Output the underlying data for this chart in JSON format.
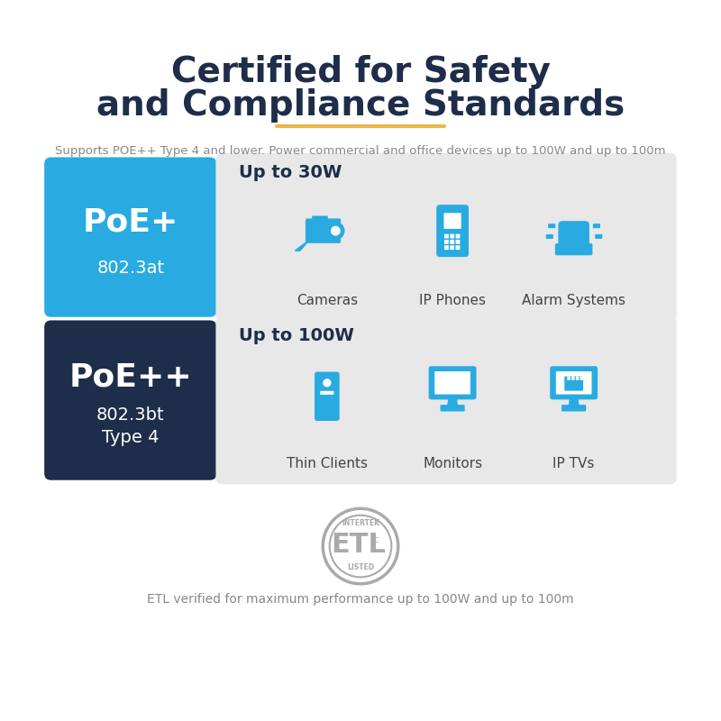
{
  "title_line1": "Certified for Safety",
  "title_line2": "and Compliance Standards",
  "title_color": "#1e2d4a",
  "subtitle": "Supports POE++ Type 4 and lower. Power commercial and office devices up to 100W and up to 100m",
  "subtitle_color": "#888888",
  "gold_line_color": "#e8b84b",
  "poe_plus_label": "PoE+",
  "poe_plus_sub": "802.3at",
  "poe_plus_bg": "#29abe2",
  "poe_plus_text_color": "#ffffff",
  "poe_plus_power": "Up to 30W",
  "poe_plus_devices": [
    "Cameras",
    "IP Phones",
    "Alarm Systems"
  ],
  "poe_plus_panel_bg": "#e8e8e8",
  "poe_pp_label": "PoE++",
  "poe_pp_sub1": "802.3bt",
  "poe_pp_sub2": "Type 4",
  "poe_pp_bg": "#1e2d4a",
  "poe_pp_text_color": "#ffffff",
  "poe_pp_power": "Up to 100W",
  "poe_pp_devices": [
    "Thin Clients",
    "Monitors",
    "IP TVs"
  ],
  "poe_pp_panel_bg": "#e8e8e8",
  "icon_color": "#29abe2",
  "device_label_color": "#444444",
  "etl_text": "ETL verified for maximum performance up to 100W and up to 100m",
  "etl_color": "#888888",
  "etl_ring_color": "#aaaaaa",
  "bg_color": "#ffffff"
}
